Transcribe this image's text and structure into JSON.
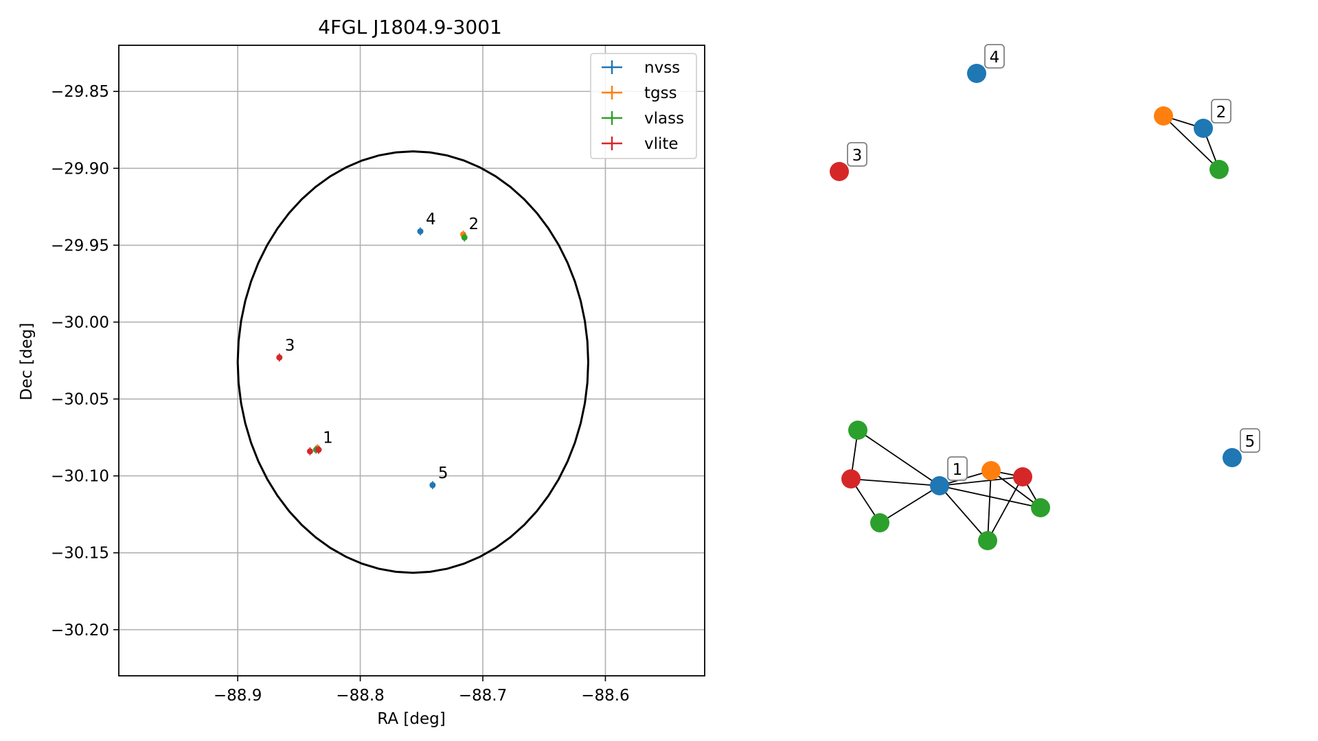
{
  "colors": {
    "nvss": "#1f77b4",
    "tgss": "#ff7f0e",
    "vlass": "#2ca02c",
    "vlite": "#d62728",
    "ellipse": "#000000",
    "grid": "#b0b0b0",
    "edge": "#000000",
    "label_box_border": "#808080"
  },
  "chart_data": [
    {
      "type": "scatter",
      "title": "4FGL J1804.9-3001",
      "xlabel": "RA [deg]",
      "ylabel": "Dec [deg]",
      "xlim": [
        -88.997,
        -88.519
      ],
      "ylim": [
        -30.23,
        -29.82
      ],
      "x_ticks": [
        -88.9,
        -88.8,
        -88.7,
        -88.6
      ],
      "x_tick_labels": [
        "−88.9",
        "−88.8",
        "−88.7",
        "−88.6"
      ],
      "y_ticks": [
        -29.85,
        -29.9,
        -29.95,
        -30.0,
        -30.05,
        -30.1,
        -30.15,
        -30.2
      ],
      "y_tick_labels": [
        "−29.85",
        "−29.90",
        "−29.95",
        "−30.00",
        "−30.05",
        "−30.10",
        "−30.15",
        "−30.20"
      ],
      "grid": true,
      "legend_position": "top-right",
      "series": [
        {
          "name": "nvss",
          "points": [
            {
              "x": -88.751,
              "y": -29.941
            },
            {
              "x": -88.741,
              "y": -30.106
            },
            {
              "x": -88.834,
              "y": -30.083
            }
          ]
        },
        {
          "name": "tgss",
          "points": [
            {
              "x": -88.716,
              "y": -29.943
            },
            {
              "x": -88.835,
              "y": -30.082
            }
          ]
        },
        {
          "name": "vlass",
          "points": [
            {
              "x": -88.715,
              "y": -29.945
            },
            {
              "x": -88.836,
              "y": -30.083
            }
          ]
        },
        {
          "name": "vlite",
          "points": [
            {
              "x": -88.866,
              "y": -30.023
            },
            {
              "x": -88.841,
              "y": -30.084
            },
            {
              "x": -88.834,
              "y": -30.083
            }
          ]
        }
      ],
      "annotations": [
        {
          "text": "1",
          "x": -88.835,
          "y": -30.083
        },
        {
          "text": "2",
          "x": -88.716,
          "y": -29.944
        },
        {
          "text": "3",
          "x": -88.866,
          "y": -30.023
        },
        {
          "text": "4",
          "x": -88.751,
          "y": -29.941
        },
        {
          "text": "5",
          "x": -88.741,
          "y": -30.106
        }
      ],
      "ellipse": {
        "center": [
          -88.757,
          -30.026
        ],
        "ra_half_width": 0.143,
        "dec_half_height": 0.137
      }
    },
    {
      "type": "network",
      "nodes": [
        {
          "id": "n4",
          "catalog": "nvss"
        },
        {
          "id": "v3",
          "catalog": "vlite"
        },
        {
          "id": "t2",
          "catalog": "tgss"
        },
        {
          "id": "n2",
          "catalog": "nvss"
        },
        {
          "id": "g2",
          "catalog": "vlass"
        },
        {
          "id": "ga",
          "catalog": "vlass"
        },
        {
          "id": "va",
          "catalog": "vlite"
        },
        {
          "id": "gb",
          "catalog": "vlass"
        },
        {
          "id": "n1",
          "catalog": "nvss"
        },
        {
          "id": "t1",
          "catalog": "tgss"
        },
        {
          "id": "vb",
          "catalog": "vlite"
        },
        {
          "id": "gc",
          "catalog": "vlass"
        },
        {
          "id": "gd",
          "catalog": "vlass"
        },
        {
          "id": "n5",
          "catalog": "nvss"
        }
      ],
      "edges": [
        [
          "t2",
          "n2"
        ],
        [
          "t2",
          "g2"
        ],
        [
          "n2",
          "g2"
        ],
        [
          "ga",
          "va"
        ],
        [
          "ga",
          "n1"
        ],
        [
          "va",
          "n1"
        ],
        [
          "va",
          "gb"
        ],
        [
          "gb",
          "n1"
        ],
        [
          "n1",
          "t1"
        ],
        [
          "n1",
          "vb"
        ],
        [
          "n1",
          "gc"
        ],
        [
          "n1",
          "gd"
        ],
        [
          "t1",
          "vb"
        ],
        [
          "t1",
          "gc"
        ],
        [
          "t1",
          "gd"
        ],
        [
          "vb",
          "gc"
        ],
        [
          "vb",
          "gd"
        ]
      ],
      "labels": [
        {
          "text": "1",
          "node": "n1"
        },
        {
          "text": "2",
          "node": "n2"
        },
        {
          "text": "3",
          "node": "v3"
        },
        {
          "text": "4",
          "node": "n4"
        },
        {
          "text": "5",
          "node": "n5"
        }
      ]
    }
  ]
}
